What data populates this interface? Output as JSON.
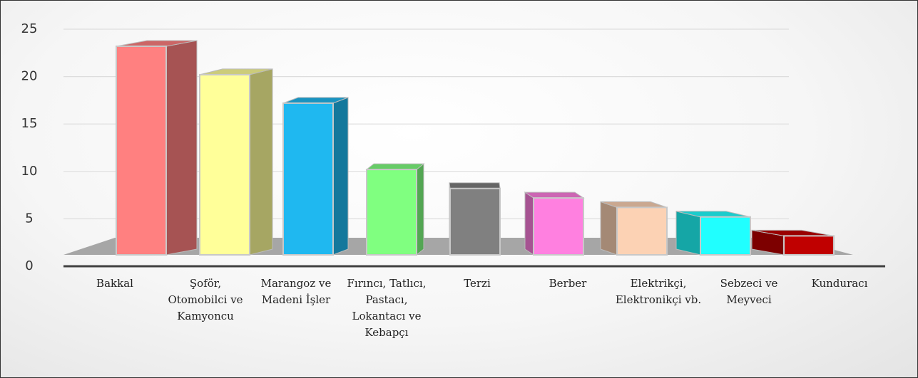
{
  "chart_data": {
    "type": "bar3d",
    "categories": [
      "Bakkal",
      "Şoför, Otomobilci ve Kamyoncu",
      "Marangoz ve Madeni İşler",
      "Fırıncı, Tatlıcı, Pastacı, Lokantacı ve Kebapçı",
      "Terzi",
      "Berber",
      "Elektrikçi, Elektronikçi vb.",
      "Sebzeci ve Meyveci",
      "Kunduracı"
    ],
    "values": [
      22,
      19,
      16,
      9,
      7,
      6,
      5,
      4,
      2
    ],
    "colors": [
      "#ff8080",
      "#ffff99",
      "#1fb8f0",
      "#80ff80",
      "#808080",
      "#ff80e0",
      "#fcd2b4",
      "#20ffff",
      "#c00000"
    ],
    "ylim": [
      0,
      25
    ],
    "yticks": [
      0,
      5,
      10,
      15,
      20,
      25
    ],
    "grid": true
  }
}
